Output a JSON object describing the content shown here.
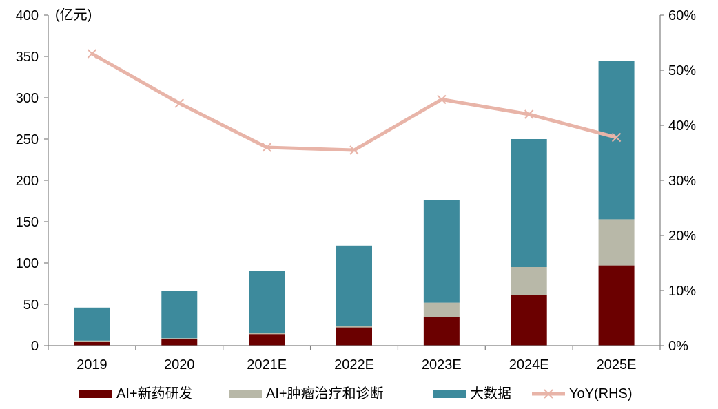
{
  "chart_data": {
    "type": "bar",
    "stacked": true,
    "categories": [
      "2019",
      "2020",
      "2021E",
      "2022E",
      "2023E",
      "2024E",
      "2025E"
    ],
    "unit_label": "(亿元)",
    "ylim": [
      0,
      400
    ],
    "yticks": [
      0,
      50,
      100,
      150,
      200,
      250,
      300,
      350,
      400
    ],
    "y2lim": [
      0,
      0.6
    ],
    "y2ticks": [
      "0%",
      "10%",
      "20%",
      "30%",
      "40%",
      "50%",
      "60%"
    ],
    "series": [
      {
        "name": "AI+新药研发",
        "values": [
          5,
          8,
          14,
          22,
          35,
          61,
          97
        ],
        "color": "#6b0000"
      },
      {
        "name": "AI+肿瘤治疗和诊断",
        "values": [
          1,
          1,
          1,
          2,
          17,
          34,
          56
        ],
        "color": "#b8b8a8"
      },
      {
        "name": "大数据",
        "values": [
          40,
          57,
          75,
          97,
          124,
          155,
          192
        ],
        "color": "#3d8a9c"
      }
    ],
    "line_series": {
      "name": "YoY(RHS)",
      "values": [
        0.53,
        0.44,
        0.36,
        0.355,
        0.447,
        0.42,
        0.378
      ],
      "color": "#e8b4a8",
      "axis": "right"
    },
    "legend_position": "bottom",
    "grid": false
  }
}
